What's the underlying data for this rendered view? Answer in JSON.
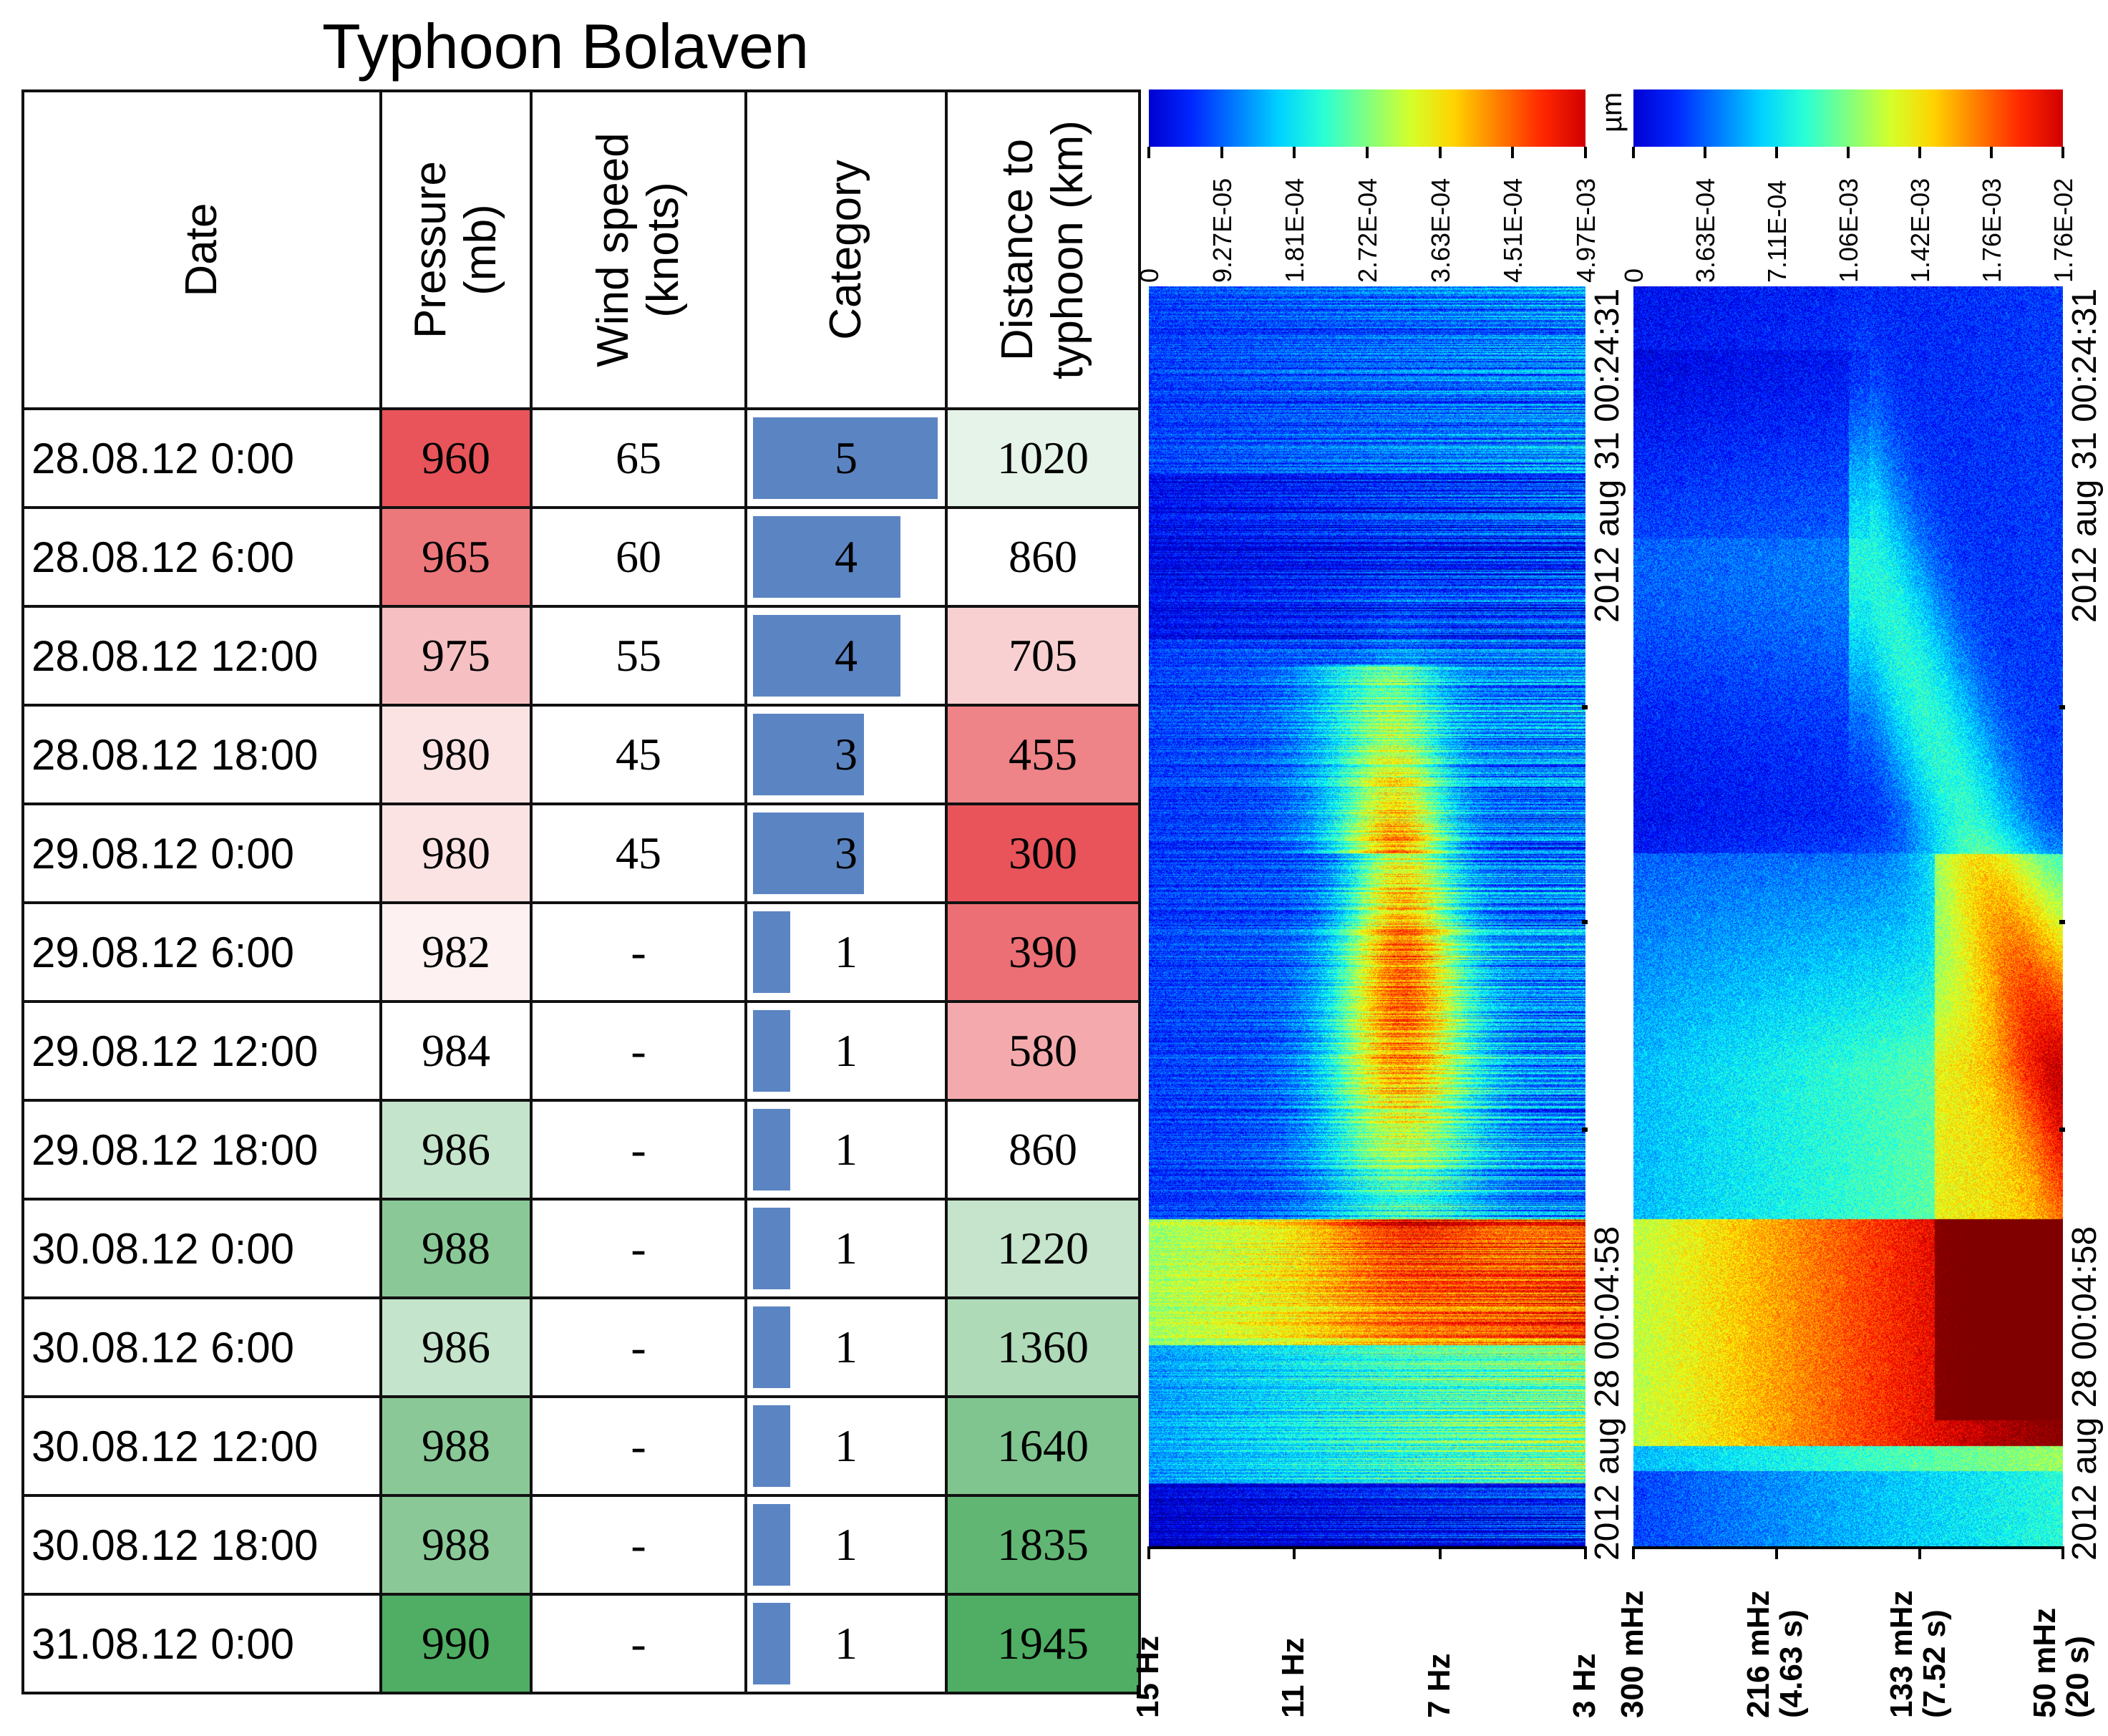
{
  "title": "Typhoon Bolaven",
  "table": {
    "headers": {
      "date": "Date",
      "pressure": [
        "Pressure",
        "(mb)"
      ],
      "wind": [
        "Wind speed",
        "(knots)"
      ],
      "category": "Category",
      "distance": [
        "Distance to",
        "typhoon (km)"
      ]
    },
    "rows": [
      {
        "date": "28.08.12 0:00",
        "pressure": "960",
        "wind": "65",
        "category": "5",
        "distance": "1020"
      },
      {
        "date": "28.08.12 6:00",
        "pressure": "965",
        "wind": "60",
        "category": "4",
        "distance": "860"
      },
      {
        "date": "28.08.12 12:00",
        "pressure": "975",
        "wind": "55",
        "category": "4",
        "distance": "705"
      },
      {
        "date": "28.08.12 18:00",
        "pressure": "980",
        "wind": "45",
        "category": "3",
        "distance": "455"
      },
      {
        "date": "29.08.12 0:00",
        "pressure": "980",
        "wind": "45",
        "category": "3",
        "distance": "300"
      },
      {
        "date": "29.08.12 6:00",
        "pressure": "982",
        "wind": "-",
        "category": "1",
        "distance": "390"
      },
      {
        "date": "29.08.12 12:00",
        "pressure": "984",
        "wind": "-",
        "category": "1",
        "distance": "580"
      },
      {
        "date": "29.08.12 18:00",
        "pressure": "986",
        "wind": "-",
        "category": "1",
        "distance": "860"
      },
      {
        "date": "30.08.12 0:00",
        "pressure": "988",
        "wind": "-",
        "category": "1",
        "distance": "1220"
      },
      {
        "date": "30.08.12 6:00",
        "pressure": "986",
        "wind": "-",
        "category": "1",
        "distance": "1360"
      },
      {
        "date": "30.08.12 12:00",
        "pressure": "988",
        "wind": "-",
        "category": "1",
        "distance": "1640"
      },
      {
        "date": "30.08.12 18:00",
        "pressure": "988",
        "wind": "-",
        "category": "1",
        "distance": "1835"
      },
      {
        "date": "31.08.12 0:00",
        "pressure": "990",
        "wind": "-",
        "category": "1",
        "distance": "1945"
      }
    ],
    "colors": {
      "low": "#e8545a",
      "mid": "#ffffff",
      "high": "#4fae63",
      "bar": "#5b84c2"
    }
  },
  "chart_data": [
    {
      "type": "heatmap",
      "panel": "left",
      "colorbar_ticks": [
        "0",
        "9.27E-05",
        "1.81E-04",
        "2.72E-04",
        "3.63E-04",
        "4.51E-04",
        "4.97E-03"
      ],
      "colorbar_unit": "",
      "x_ticks": [
        "15 Hz",
        "11 Hz",
        "7 Hz",
        "3 Hz"
      ],
      "time_start": "2012 aug 28 00:04:58",
      "time_end": "2012 aug 31 00:24:31"
    },
    {
      "type": "heatmap",
      "panel": "right",
      "colorbar_ticks": [
        "0",
        "3.63E-04",
        "7.11E-04",
        "1.06E-03",
        "1.42E-03",
        "1.76E-03",
        "1.76E-02"
      ],
      "colorbar_unit": "µm",
      "x_ticks": [
        [
          "300 mHz"
        ],
        [
          "216 mHz",
          "(4.63 s)"
        ],
        [
          "133 mHz",
          "(7.52 s)"
        ],
        [
          "50 mHz",
          "(20 s)"
        ]
      ],
      "time_start": "2012 aug 28 00:04:58",
      "time_end": "2012 aug 31 00:24:31"
    }
  ]
}
